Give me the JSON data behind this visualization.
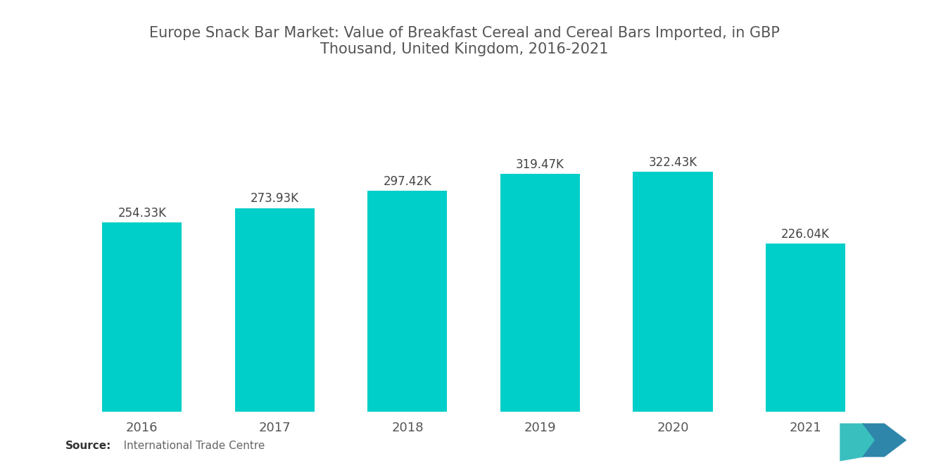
{
  "title": "Europe Snack Bar Market: Value of Breakfast Cereal and Cereal Bars Imported, in GBP\nThousand, United Kingdom, 2016-2021",
  "categories": [
    "2016",
    "2017",
    "2018",
    "2019",
    "2020",
    "2021"
  ],
  "values": [
    254.33,
    273.93,
    297.42,
    319.47,
    322.43,
    226.04
  ],
  "labels": [
    "254.33K",
    "273.93K",
    "297.42K",
    "319.47K",
    "322.43K",
    "226.04K"
  ],
  "bar_color": "#00CEC9",
  "background_color": "#FFFFFF",
  "title_color": "#555555",
  "label_color": "#444444",
  "tick_color": "#555555",
  "source_bold": "Source:",
  "source_rest": "   International Trade Centre",
  "title_fontsize": 15,
  "label_fontsize": 12,
  "tick_fontsize": 13,
  "source_fontsize": 11,
  "ylim": [
    0,
    390
  ],
  "bar_width": 0.6
}
